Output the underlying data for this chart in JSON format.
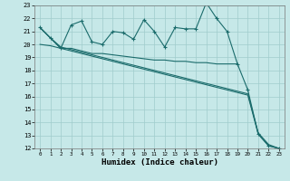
{
  "xlabel": "Humidex (Indice chaleur)",
  "xlim": [
    -0.5,
    23.5
  ],
  "ylim": [
    12,
    23
  ],
  "yticks": [
    12,
    13,
    14,
    15,
    16,
    17,
    18,
    19,
    20,
    21,
    22,
    23
  ],
  "xticks": [
    0,
    1,
    2,
    3,
    4,
    5,
    6,
    7,
    8,
    9,
    10,
    11,
    12,
    13,
    14,
    15,
    16,
    17,
    18,
    19,
    20,
    21,
    22,
    23
  ],
  "bg_color": "#c6e8e8",
  "line_color": "#1a6b6b",
  "grid_color": "#a0cccc",
  "line1_x": [
    0,
    1,
    2,
    3,
    4,
    5,
    6,
    7,
    8,
    9,
    10,
    11,
    12,
    13,
    14,
    15,
    16,
    17,
    18,
    19,
    20,
    21,
    22,
    23
  ],
  "line1_y": [
    21.3,
    20.5,
    19.7,
    21.5,
    21.8,
    20.2,
    20.0,
    21.0,
    20.9,
    20.4,
    21.9,
    21.0,
    19.8,
    21.3,
    21.2,
    21.2,
    23.2,
    22.0,
    21.0,
    18.5,
    16.5,
    13.1,
    12.2,
    12.0
  ],
  "line2_x": [
    0,
    1,
    2,
    3,
    4,
    5,
    6,
    7,
    8,
    9,
    10,
    11,
    12,
    13,
    14,
    15,
    16,
    17,
    18,
    19
  ],
  "line2_y": [
    21.3,
    20.5,
    19.7,
    19.7,
    19.5,
    19.3,
    19.3,
    19.2,
    19.1,
    19.0,
    18.9,
    18.8,
    18.8,
    18.7,
    18.7,
    18.6,
    18.6,
    18.5,
    18.5,
    18.5
  ],
  "line3_x": [
    0,
    1,
    2,
    3,
    4,
    5,
    6,
    7,
    8,
    9,
    10,
    11,
    12,
    13,
    14,
    15,
    16,
    17,
    18,
    19,
    20,
    21,
    22,
    23
  ],
  "line3_y": [
    21.3,
    20.5,
    19.8,
    19.6,
    19.4,
    19.2,
    19.0,
    18.8,
    18.6,
    18.4,
    18.2,
    18.0,
    17.8,
    17.6,
    17.4,
    17.2,
    17.0,
    16.8,
    16.6,
    16.4,
    16.2,
    13.2,
    12.3,
    12.0
  ],
  "line4_x": [
    0,
    1,
    2,
    3,
    4,
    5,
    6,
    7,
    8,
    9,
    10,
    11,
    12,
    13,
    14,
    15,
    16,
    17,
    18,
    19,
    20,
    21,
    22,
    23
  ],
  "line4_y": [
    20.0,
    19.9,
    19.7,
    19.5,
    19.3,
    19.1,
    18.9,
    18.7,
    18.5,
    18.3,
    18.1,
    17.9,
    17.7,
    17.5,
    17.3,
    17.1,
    16.9,
    16.7,
    16.5,
    16.3,
    16.1,
    13.1,
    12.2,
    12.0
  ]
}
